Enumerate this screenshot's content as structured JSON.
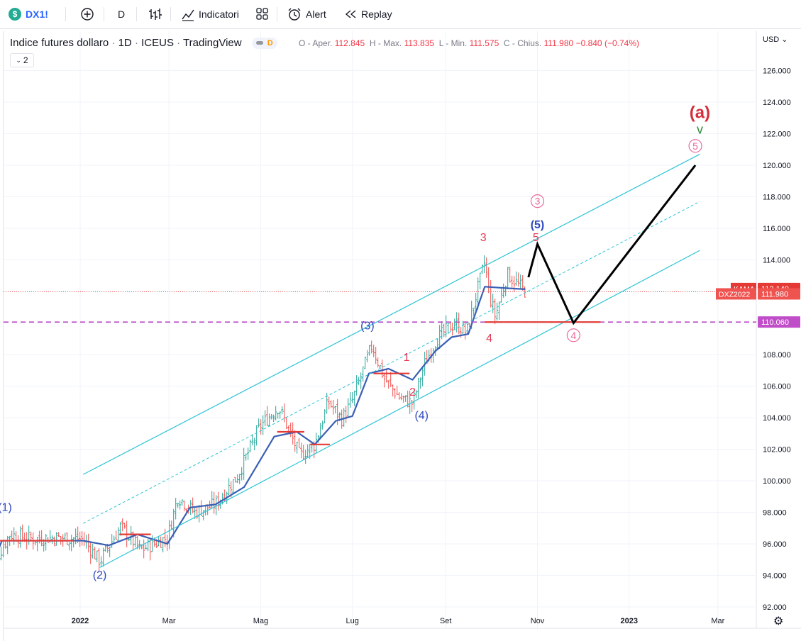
{
  "toolbar": {
    "symbol": "DX1!",
    "symbol_icon": "$",
    "interval": "D",
    "indicators_label": "Indicatori",
    "alert_label": "Alert",
    "replay_label": "Replay"
  },
  "legend": {
    "title_parts": [
      "Indice futures dollaro",
      "1D",
      "ICEUS",
      "TradingView"
    ],
    "badge": "D",
    "collapse_count": "2",
    "o_label": "O - Aper.",
    "o_value": "112.845",
    "h_label": "H - Max.",
    "h_value": "113.835",
    "l_label": "L - Min.",
    "l_value": "111.575",
    "c_label": "C - Chius.",
    "c_value": "111.980",
    "change": "−0.840",
    "change_pct": "(−0.74%)"
  },
  "currency": "USD",
  "colors": {
    "up": "#26a69a",
    "down": "#ef5350",
    "kama": "#3a5fb4",
    "kama_flat": "#e53935",
    "channel": "#2ec4d6",
    "red_label": "#e53955",
    "blue_label": "#2f48c0",
    "projection": "#000000",
    "support": "#c04ec8"
  },
  "chart_data": {
    "type": "candlestick",
    "ylim": [
      92,
      127.5
    ],
    "y_ticks": [
      "92.000",
      "94.000",
      "96.000",
      "98.000",
      "100.000",
      "102.000",
      "104.000",
      "106.000",
      "108.000",
      "110.000",
      "112.000",
      "114.000",
      "116.000",
      "118.000",
      "120.000",
      "122.000",
      "124.000",
      "126.000"
    ],
    "x_labels": [
      "2022",
      "Mar",
      "Mag",
      "Lug",
      "Set",
      "Nov",
      "2023",
      "Mar"
    ],
    "close_path": [
      [
        "2021-11-01",
        94.1
      ],
      [
        "2021-11-15",
        96.6
      ],
      [
        "2021-12-01",
        96.3
      ],
      [
        "2021-12-15",
        96.4
      ],
      [
        "2022-01-03",
        96.3
      ],
      [
        "2022-01-14",
        94.9
      ],
      [
        "2022-01-28",
        97.1
      ],
      [
        "2022-02-10",
        95.6
      ],
      [
        "2022-02-28",
        96.4
      ],
      [
        "2022-03-07",
        99.0
      ],
      [
        "2022-03-18",
        98.0
      ],
      [
        "2022-04-01",
        98.5
      ],
      [
        "2022-04-15",
        100.2
      ],
      [
        "2022-05-01",
        103.5
      ],
      [
        "2022-05-13",
        104.7
      ],
      [
        "2022-05-27",
        101.6
      ],
      [
        "2022-06-06",
        102.3
      ],
      [
        "2022-06-15",
        105.0
      ],
      [
        "2022-06-24",
        103.9
      ],
      [
        "2022-07-01",
        105.1
      ],
      [
        "2022-07-14",
        108.6
      ],
      [
        "2022-07-22",
        106.5
      ],
      [
        "2022-08-01",
        105.3
      ],
      [
        "2022-08-10",
        104.9
      ],
      [
        "2022-08-18",
        107.4
      ],
      [
        "2022-08-26",
        109.0
      ],
      [
        "2022-09-07",
        110.0
      ],
      [
        "2022-09-15",
        109.4
      ],
      [
        "2022-09-27",
        113.9
      ],
      [
        "2022-09-30",
        111.8
      ],
      [
        "2022-10-04",
        110.4
      ],
      [
        "2022-10-12",
        113.1
      ],
      [
        "2022-10-24",
        111.98
      ]
    ],
    "kama_path": [
      [
        "2021-11-01",
        94.1
      ],
      [
        "2021-11-10",
        96.2
      ],
      [
        "2022-01-03",
        96.2
      ],
      [
        "2022-01-20",
        95.9
      ],
      [
        "2022-02-08",
        96.6
      ],
      [
        "2022-02-28",
        96.0
      ],
      [
        "2022-03-15",
        98.3
      ],
      [
        "2022-04-01",
        98.5
      ],
      [
        "2022-04-20",
        99.6
      ],
      [
        "2022-05-10",
        102.8
      ],
      [
        "2022-05-25",
        103.1
      ],
      [
        "2022-06-06",
        102.3
      ],
      [
        "2022-06-20",
        103.8
      ],
      [
        "2022-07-01",
        104.1
      ],
      [
        "2022-07-12",
        106.8
      ],
      [
        "2022-07-25",
        107.1
      ],
      [
        "2022-08-10",
        106.4
      ],
      [
        "2022-08-25",
        108.2
      ],
      [
        "2022-09-05",
        109.1
      ],
      [
        "2022-09-16",
        109.3
      ],
      [
        "2022-09-27",
        112.3
      ],
      [
        "2022-10-12",
        112.2
      ],
      [
        "2022-10-24",
        112.14
      ]
    ],
    "kama_flat": [
      [
        "2021-11-05",
        "2021-12-28",
        96.2
      ],
      [
        "2022-01-27",
        "2022-02-17",
        96.6
      ],
      [
        "2022-05-12",
        "2022-05-30",
        103.1
      ],
      [
        "2022-06-03",
        "2022-06-16",
        102.3
      ],
      [
        "2022-07-15",
        "2022-08-08",
        106.8
      ]
    ],
    "channel_upper": [
      [
        "2022-01-03",
        100.4
      ],
      [
        "2023-02-17",
        120.7
      ]
    ],
    "channel_lower": [
      [
        "2022-01-14",
        94.5
      ],
      [
        "2023-02-17",
        114.6
      ]
    ],
    "channel_mid": [
      [
        "2022-01-03",
        97.3
      ],
      [
        "2023-02-17",
        117.7
      ]
    ],
    "projection": [
      [
        "2022-10-26",
        112.9
      ],
      [
        "2022-11-01",
        115.0
      ],
      [
        "2022-11-25",
        110.0
      ],
      [
        "2023-02-14",
        120.0
      ]
    ],
    "support_level": 110.06,
    "price_markers": [
      {
        "label": "KAMA",
        "value": "112.140",
        "y": 112.14
      },
      {
        "label": "DXZ2022",
        "value": "111.980",
        "y": 111.98
      },
      {
        "label": "",
        "value": "110.060",
        "y": 110.06
      }
    ],
    "wave_labels": [
      {
        "text": "(1)",
        "date": "2021-11-12",
        "y": 98.1,
        "color": "blue"
      },
      {
        "text": "(2)",
        "date": "2022-01-14",
        "y": 93.8,
        "color": "blue"
      },
      {
        "text": "(3)",
        "date": "2022-07-11",
        "y": 109.6,
        "color": "blue"
      },
      {
        "text": "(4)",
        "date": "2022-08-16",
        "y": 103.9,
        "color": "blue"
      },
      {
        "text": "(5)",
        "date": "2022-11-01",
        "y": 116.0,
        "color": "blue"
      },
      {
        "text": "1",
        "date": "2022-08-06",
        "y": 107.6,
        "color": "red"
      },
      {
        "text": "2",
        "date": "2022-08-10",
        "y": 105.4,
        "color": "red"
      },
      {
        "text": "3",
        "date": "2022-09-26",
        "y": 115.2,
        "color": "red"
      },
      {
        "text": "4",
        "date": "2022-09-30",
        "y": 108.8,
        "color": "red"
      },
      {
        "text": "5",
        "date": "2022-10-31",
        "y": 115.2,
        "color": "red"
      },
      {
        "text": "3",
        "date": "2022-11-01",
        "y": 117.5,
        "color": "circle"
      },
      {
        "text": "4",
        "date": "2022-11-25",
        "y": 109.0,
        "color": "circle"
      },
      {
        "text": "5",
        "date": "2023-02-14",
        "y": 121.0,
        "color": "circle"
      },
      {
        "text": "v",
        "date": "2023-02-17",
        "y": 122.0,
        "color": "green"
      },
      {
        "text": "(a)",
        "date": "2023-02-17",
        "y": 123.0,
        "color": "bigred"
      }
    ]
  }
}
